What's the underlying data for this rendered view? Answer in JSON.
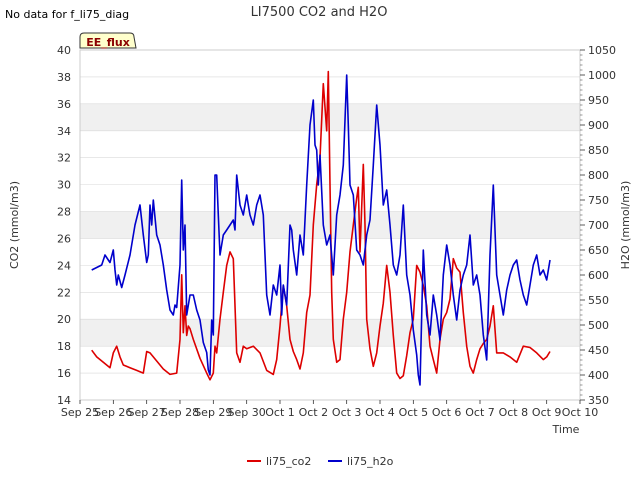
{
  "no_data_note": "No data for f_li75_diag",
  "badge": "EE_flux",
  "colors": {
    "co2": "#dd0000",
    "h2o": "#0000cc",
    "band": "#f0f0f0",
    "grid": "#d9d9d9",
    "frame": "#cccccc"
  },
  "chart_data": {
    "type": "line",
    "title": "LI7500 CO2 and H2O",
    "xlabel": "Time",
    "ylabel": "CO2 (mmol/m3)",
    "y2label": "H2O (mmol/m3)",
    "x_range": [
      0,
      15
    ],
    "x_tick_labels": [
      "Sep 25",
      "Sep 26",
      "Sep 27",
      "Sep 28",
      "Sep 29",
      "Sep 30",
      "Oct 1",
      "Oct 2",
      "Oct 3",
      "Oct 4",
      "Oct 5",
      "Oct 6",
      "Oct 7",
      "Oct 8",
      "Oct 9",
      "Oct 10"
    ],
    "ylim": [
      14,
      40
    ],
    "y_ticks": [
      14,
      16,
      18,
      20,
      22,
      24,
      26,
      28,
      30,
      32,
      34,
      36,
      38,
      40
    ],
    "y2lim": [
      350,
      1050
    ],
    "y2_ticks": [
      350,
      400,
      450,
      500,
      550,
      600,
      650,
      700,
      750,
      800,
      850,
      900,
      950,
      1000,
      1050
    ],
    "series": [
      {
        "name": "li75_co2",
        "axis": "left",
        "x": [
          0.35,
          0.5,
          0.7,
          0.9,
          1.0,
          1.1,
          1.2,
          1.3,
          1.5,
          1.7,
          1.9,
          2.0,
          2.1,
          2.3,
          2.5,
          2.7,
          2.9,
          3.0,
          3.05,
          3.1,
          3.15,
          3.2,
          3.25,
          3.3,
          3.4,
          3.6,
          3.8,
          3.9,
          4.0,
          4.05,
          4.1,
          4.2,
          4.3,
          4.4,
          4.5,
          4.6,
          4.7,
          4.8,
          4.9,
          5.0,
          5.2,
          5.4,
          5.6,
          5.8,
          5.9,
          6.0,
          6.1,
          6.2,
          6.3,
          6.4,
          6.5,
          6.6,
          6.7,
          6.8,
          6.9,
          7.0,
          7.1,
          7.2,
          7.3,
          7.4,
          7.45,
          7.5,
          7.55,
          7.6,
          7.7,
          7.8,
          7.9,
          8.0,
          8.1,
          8.2,
          8.3,
          8.35,
          8.4,
          8.5,
          8.55,
          8.6,
          8.7,
          8.8,
          8.9,
          9.0,
          9.1,
          9.2,
          9.3,
          9.4,
          9.5,
          9.6,
          9.7,
          9.8,
          9.9,
          10.0,
          10.1,
          10.2,
          10.3,
          10.4,
          10.5,
          10.6,
          10.7,
          10.8,
          10.9,
          11.0,
          11.1,
          11.2,
          11.3,
          11.4,
          11.5,
          11.6,
          11.7,
          11.8,
          11.9,
          12.0,
          12.1,
          12.2,
          12.3,
          12.4,
          12.5,
          12.7,
          12.9,
          13.1,
          13.3,
          13.5,
          13.7,
          13.9,
          14.0,
          14.1
        ],
        "values": [
          17.7,
          17.2,
          16.8,
          16.4,
          17.5,
          18.0,
          17.2,
          16.6,
          16.4,
          16.2,
          16.0,
          17.6,
          17.5,
          16.9,
          16.3,
          15.9,
          16.0,
          18.5,
          23.3,
          19.0,
          21.0,
          18.8,
          19.5,
          19.3,
          18.5,
          17.1,
          16.0,
          15.5,
          16.0,
          18.0,
          17.5,
          20.0,
          22.0,
          24.0,
          25.0,
          24.5,
          17.5,
          16.8,
          18.0,
          17.8,
          18.0,
          17.5,
          16.2,
          15.9,
          17.0,
          19.5,
          22.5,
          21.0,
          18.5,
          17.6,
          17.0,
          16.3,
          17.5,
          20.5,
          21.8,
          27.0,
          30.0,
          32.0,
          37.5,
          34.0,
          38.4,
          30.0,
          22.0,
          18.5,
          16.8,
          17.0,
          20.0,
          22.0,
          25.0,
          27.0,
          29.0,
          29.8,
          25.0,
          31.5,
          27.0,
          20.0,
          17.8,
          16.5,
          17.5,
          19.5,
          21.2,
          24.0,
          22.0,
          18.8,
          16.0,
          15.6,
          15.8,
          17.3,
          19.0,
          20.0,
          24.0,
          23.5,
          22.5,
          21.0,
          18.0,
          17.0,
          16.0,
          18.5,
          20.0,
          20.5,
          21.5,
          24.5,
          23.8,
          23.5,
          20.5,
          18.0,
          16.5,
          16.0,
          17.0,
          17.8,
          18.2,
          18.5,
          19.5,
          21.0,
          17.5,
          17.5,
          17.2,
          16.8,
          18.0,
          17.9,
          17.5,
          17.0,
          17.2,
          17.6
        ]
      },
      {
        "name": "li75_h2o",
        "axis": "right",
        "x": [
          0.35,
          0.5,
          0.65,
          0.75,
          0.85,
          0.9,
          1.0,
          1.05,
          1.1,
          1.15,
          1.25,
          1.35,
          1.5,
          1.65,
          1.8,
          1.9,
          2.0,
          2.05,
          2.1,
          2.15,
          2.2,
          2.3,
          2.4,
          2.5,
          2.6,
          2.7,
          2.8,
          2.85,
          2.9,
          3.0,
          3.05,
          3.1,
          3.15,
          3.2,
          3.3,
          3.4,
          3.5,
          3.6,
          3.7,
          3.8,
          3.85,
          3.9,
          3.95,
          4.0,
          4.05,
          4.1,
          4.15,
          4.2,
          4.3,
          4.4,
          4.5,
          4.6,
          4.65,
          4.7,
          4.8,
          4.9,
          5.0,
          5.05,
          5.1,
          5.2,
          5.3,
          5.4,
          5.5,
          5.6,
          5.7,
          5.8,
          5.9,
          6.0,
          6.05,
          6.1,
          6.2,
          6.3,
          6.35,
          6.4,
          6.5,
          6.6,
          6.7,
          6.8,
          6.9,
          7.0,
          7.05,
          7.1,
          7.15,
          7.2,
          7.3,
          7.4,
          7.5,
          7.6,
          7.7,
          7.8,
          7.9,
          8.0,
          8.05,
          8.1,
          8.2,
          8.3,
          8.4,
          8.5,
          8.6,
          8.7,
          8.8,
          8.9,
          9.0,
          9.1,
          9.2,
          9.3,
          9.4,
          9.5,
          9.6,
          9.7,
          9.8,
          9.9,
          10.0,
          10.1,
          10.15,
          10.2,
          10.3,
          10.4,
          10.5,
          10.6,
          10.7,
          10.8,
          10.9,
          11.0,
          11.1,
          11.2,
          11.3,
          11.4,
          11.5,
          11.6,
          11.7,
          11.8,
          11.9,
          12.0,
          12.1,
          12.2,
          12.3,
          12.4,
          12.5,
          12.6,
          12.7,
          12.8,
          12.9,
          13.0,
          13.1,
          13.2,
          13.3,
          13.4,
          13.5,
          13.6,
          13.7,
          13.8,
          13.9,
          14.0,
          14.1
        ],
        "values": [
          610,
          615,
          620,
          640,
          630,
          625,
          650,
          610,
          580,
          600,
          575,
          600,
          640,
          700,
          740,
          680,
          625,
          640,
          740,
          700,
          750,
          680,
          660,
          620,
          570,
          530,
          520,
          540,
          535,
          620,
          790,
          650,
          700,
          520,
          560,
          560,
          530,
          510,
          465,
          445,
          410,
          400,
          510,
          480,
          800,
          800,
          720,
          640,
          680,
          690,
          700,
          710,
          690,
          800,
          740,
          720,
          760,
          740,
          720,
          700,
          740,
          760,
          720,
          560,
          520,
          580,
          560,
          620,
          520,
          580,
          540,
          700,
          690,
          650,
          600,
          680,
          640,
          780,
          900,
          950,
          860,
          850,
          780,
          840,
          700,
          660,
          680,
          600,
          720,
          760,
          820,
          1000,
          900,
          780,
          760,
          650,
          640,
          620,
          680,
          710,
          820,
          940,
          860,
          740,
          770,
          700,
          620,
          600,
          640,
          740,
          600,
          560,
          490,
          440,
          400,
          380,
          650,
          520,
          480,
          560,
          520,
          470,
          600,
          660,
          620,
          560,
          510,
          570,
          600,
          620,
          680,
          580,
          600,
          560,
          480,
          430,
          640,
          780,
          600,
          560,
          520,
          570,
          600,
          620,
          630,
          590,
          560,
          540,
          580,
          620,
          640,
          600,
          610,
          590,
          630
        ]
      }
    ]
  }
}
